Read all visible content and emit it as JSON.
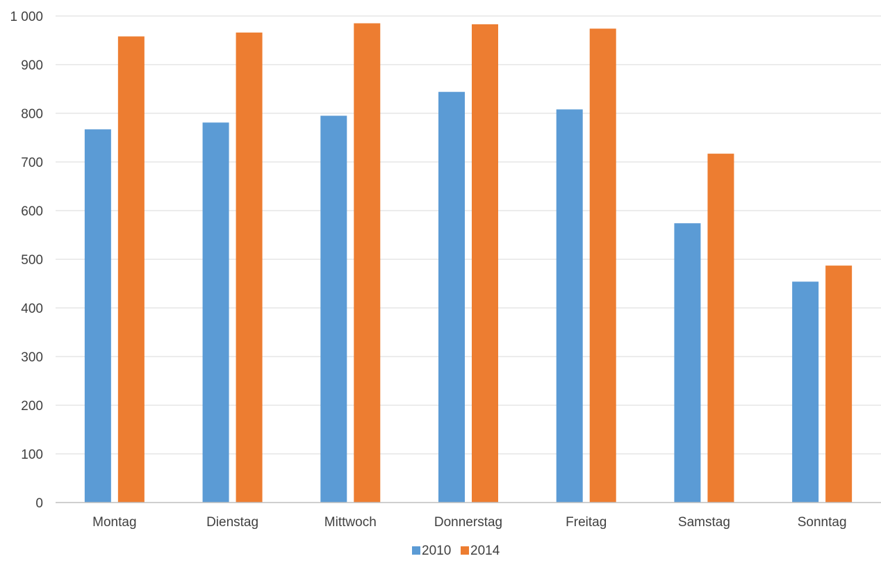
{
  "chart_data": {
    "type": "bar",
    "categories": [
      "Montag",
      "Dienstag",
      "Mittwoch",
      "Donnerstag",
      "Freitag",
      "Samstag",
      "Sonntag"
    ],
    "series": [
      {
        "name": "2010",
        "color": "#5b9bd5",
        "values": [
          767,
          781,
          795,
          844,
          808,
          574,
          454
        ]
      },
      {
        "name": "2014",
        "color": "#ed7d31",
        "values": [
          958,
          966,
          985,
          983,
          974,
          717,
          487
        ]
      }
    ],
    "ylim": [
      0,
      1000
    ],
    "yticks": [
      "0",
      "100",
      "200",
      "300",
      "400",
      "500",
      "600",
      "700",
      "800",
      "900",
      "1 000"
    ],
    "grid": true,
    "legend_position": "bottom-center",
    "title": "",
    "xlabel": "",
    "ylabel": ""
  }
}
